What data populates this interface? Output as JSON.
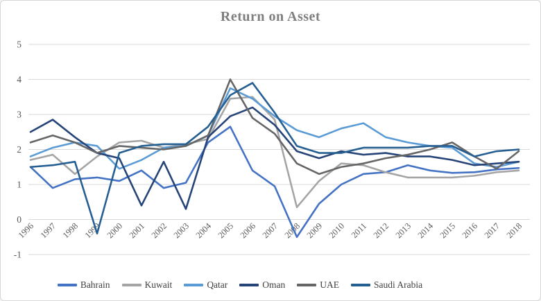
{
  "chart": {
    "background": "#FFFFFF",
    "border_color": "#D7D7D7",
    "gridline_color": "#D9D9D9",
    "axis_label_color": "#595959",
    "title_color": "#7F7F7F"
  },
  "chart_data": {
    "type": "line",
    "title": "Return on Asset",
    "categories": [
      "1996",
      "1997",
      "1998",
      "1999",
      "2000",
      "2001",
      "2002",
      "2003",
      "2004",
      "2005",
      "2006",
      "2007",
      "2008",
      "2009",
      "2010",
      "2011",
      "2012",
      "2013",
      "2014",
      "2015",
      "2016",
      "2017",
      "2018"
    ],
    "series": [
      {
        "name": "Bahrain",
        "color": "#4472C4",
        "values": [
          1.5,
          0.9,
          1.15,
          1.2,
          1.1,
          1.4,
          0.9,
          1.05,
          2.2,
          2.65,
          1.4,
          0.95,
          -0.5,
          0.45,
          1.0,
          1.3,
          1.35,
          1.55,
          1.4,
          1.33,
          1.35,
          1.43,
          1.47
        ]
      },
      {
        "name": "Kuwait",
        "color": "#A5A5A5",
        "values": [
          1.7,
          1.85,
          1.3,
          1.8,
          2.2,
          2.25,
          2.05,
          2.15,
          2.3,
          3.45,
          3.5,
          2.85,
          0.35,
          1.1,
          1.6,
          1.55,
          1.35,
          1.2,
          1.2,
          1.2,
          1.25,
          1.35,
          1.4
        ]
      },
      {
        "name": "Qatar",
        "color": "#5B9BD5",
        "values": [
          1.8,
          2.05,
          2.2,
          2.1,
          1.45,
          1.7,
          2.05,
          2.1,
          2.4,
          3.75,
          3.45,
          2.95,
          2.55,
          2.35,
          2.6,
          2.75,
          2.35,
          2.2,
          2.1,
          2.05,
          1.6,
          1.5,
          1.65
        ]
      },
      {
        "name": "Oman",
        "color": "#264478",
        "values": [
          2.5,
          2.85,
          2.35,
          1.9,
          1.75,
          0.4,
          1.65,
          0.3,
          2.35,
          2.95,
          3.2,
          2.7,
          1.95,
          1.75,
          1.95,
          1.85,
          1.9,
          1.8,
          1.8,
          1.7,
          1.55,
          1.6,
          1.65
        ]
      },
      {
        "name": "UAE",
        "color": "#666666",
        "values": [
          2.2,
          2.4,
          2.2,
          1.9,
          2.1,
          2.05,
          2.0,
          2.1,
          2.4,
          4.0,
          2.9,
          2.45,
          1.6,
          1.3,
          1.5,
          1.6,
          1.75,
          1.85,
          2.0,
          2.2,
          1.8,
          1.45,
          1.95
        ]
      },
      {
        "name": "Saudi Arabia",
        "color": "#255E91",
        "values": [
          1.5,
          1.55,
          1.65,
          -0.4,
          1.9,
          2.1,
          2.15,
          2.15,
          2.65,
          3.55,
          3.9,
          3.05,
          2.1,
          1.9,
          1.9,
          2.05,
          2.05,
          2.05,
          2.1,
          2.1,
          1.8,
          1.95,
          2.0
        ]
      }
    ],
    "ylim": [
      -1,
      5
    ],
    "yticks": [
      "5",
      "4",
      "3",
      "2",
      "1",
      "0",
      "-1"
    ],
    "xlabel": "",
    "ylabel": "",
    "grid": true,
    "legend_position": "bottom"
  }
}
